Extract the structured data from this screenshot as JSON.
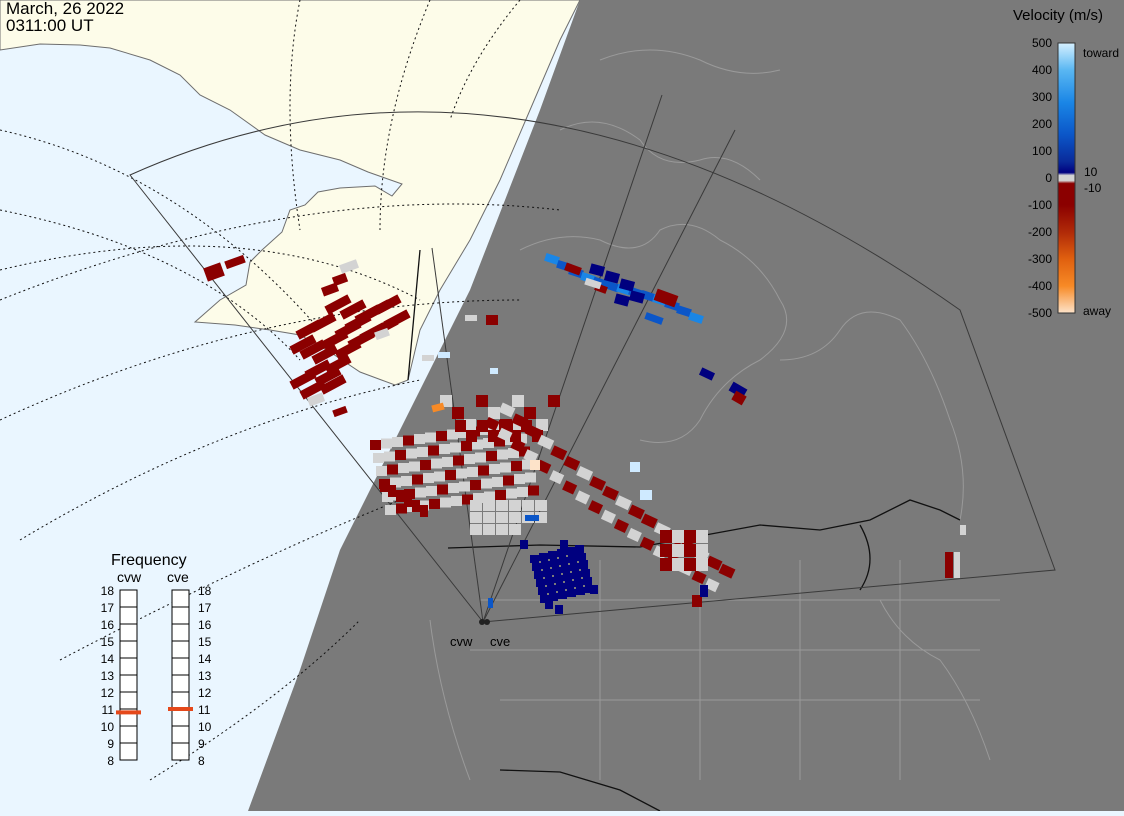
{
  "header": {
    "date": "March, 26 2022",
    "time": "0311:00 UT"
  },
  "legend": {
    "title": "Velocity (m/s)",
    "ticks": [
      "500",
      "400",
      "300",
      "200",
      "100",
      "10",
      "0",
      "-10",
      "-100",
      "-200",
      "-300",
      "-400",
      "-500"
    ],
    "toward_label": "toward",
    "away_label": "away",
    "colors": [
      "#fde3c9",
      "#fbb87a",
      "#f78a26",
      "#e0600f",
      "#b02a08",
      "#8b0000",
      "#d3d3d3",
      "#00007f",
      "#0a2a9a",
      "#0b56c8",
      "#1a86e6",
      "#5ab7f2",
      "#d6f0ff"
    ]
  },
  "frequency": {
    "title": "Frequency",
    "radars": [
      {
        "name": "cvw",
        "value_mhz": 10.8
      },
      {
        "name": "cve",
        "value_mhz": 11.0
      }
    ],
    "scale": [
      "18",
      "17",
      "16",
      "15",
      "14",
      "13",
      "12",
      "11",
      "10",
      "9",
      "8"
    ],
    "marker_color": "#e5481a"
  },
  "map": {
    "radar_labels": [
      "cvw",
      "cve"
    ],
    "night_color": "#7a7a7a",
    "day_ocean_color": "#eaf6ff",
    "day_land_color": "#fdfce9",
    "scatter_colors": {
      "away_red": "#8b0000",
      "ground_grey": "#d3d3d3",
      "toward_dark": "#00007f",
      "toward_mid": "#0b56c8",
      "toward_light": "#cfeaff",
      "orange": "#f78a26"
    }
  }
}
